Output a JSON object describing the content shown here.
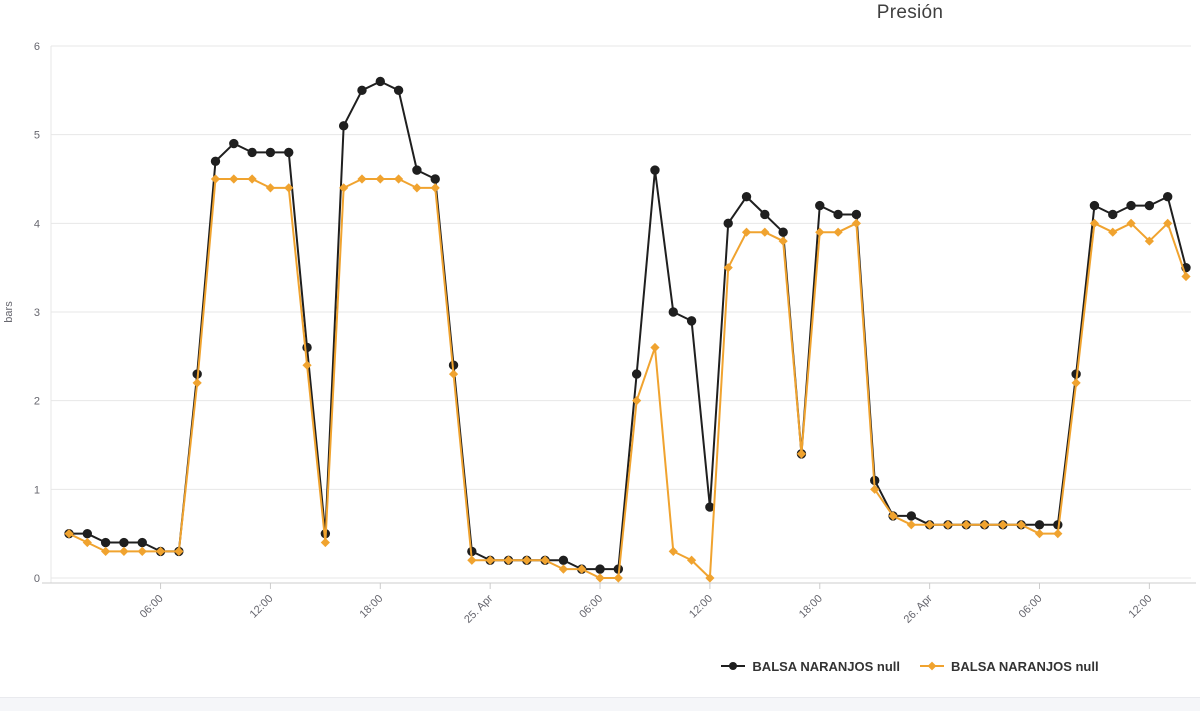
{
  "page": {
    "background_color": "#ffffff",
    "footer_bar_color": "#f5f6f9"
  },
  "chart_data": {
    "type": "line",
    "title": "Presión",
    "xlabel": "",
    "ylabel": "bars",
    "ylim": [
      0,
      6
    ],
    "yticks": [
      0,
      1,
      2,
      3,
      4,
      5,
      6
    ],
    "grid": true,
    "grid_color": "#e7e7e7",
    "axis_color": "#cccccc",
    "tick_text_color": "#66666e",
    "legend_position": "bottom",
    "x_start": "24. Apr 01:00",
    "x_interval_hours": 1,
    "n_points": 62,
    "x_tick_labels": [
      "06:00",
      "12:00",
      "18:00",
      "25. Apr",
      "06:00",
      "12:00",
      "18:00",
      "26. Apr",
      "06:00",
      "12:00"
    ],
    "x_tick_indices": [
      5,
      11,
      17,
      23,
      29,
      35,
      41,
      47,
      53,
      59
    ],
    "series": [
      {
        "name": "BALSA NARANJOS null",
        "color": "#1f1f1f",
        "marker": "circle",
        "values": [
          0.5,
          0.5,
          0.4,
          0.4,
          0.4,
          0.3,
          0.3,
          2.3,
          4.7,
          4.9,
          4.8,
          4.8,
          4.8,
          2.6,
          0.5,
          5.1,
          5.5,
          5.6,
          5.5,
          4.6,
          4.5,
          2.4,
          0.3,
          0.2,
          0.2,
          0.2,
          0.2,
          0.2,
          0.1,
          0.1,
          0.1,
          2.3,
          4.6,
          3.0,
          2.9,
          0.8,
          4.0,
          4.3,
          4.1,
          3.9,
          1.4,
          4.2,
          4.1,
          4.1,
          1.1,
          0.7,
          0.7,
          0.6,
          0.6,
          0.6,
          0.6,
          0.6,
          0.6,
          0.6,
          0.6,
          2.3,
          4.2,
          4.1,
          4.2,
          4.2,
          4.3,
          3.5
        ]
      },
      {
        "name": "BALSA NARANJOS null",
        "color": "#f0a32f",
        "marker": "diamond",
        "values": [
          0.5,
          0.4,
          0.3,
          0.3,
          0.3,
          0.3,
          0.3,
          2.2,
          4.5,
          4.5,
          4.5,
          4.4,
          4.4,
          2.4,
          0.4,
          4.4,
          4.5,
          4.5,
          4.5,
          4.4,
          4.4,
          2.3,
          0.2,
          0.2,
          0.2,
          0.2,
          0.2,
          0.1,
          0.1,
          0.0,
          0.0,
          2.0,
          2.6,
          0.3,
          0.2,
          0.0,
          3.5,
          3.9,
          3.9,
          3.8,
          1.4,
          3.9,
          3.9,
          4.0,
          1.0,
          0.7,
          0.6,
          0.6,
          0.6,
          0.6,
          0.6,
          0.6,
          0.6,
          0.5,
          0.5,
          2.2,
          4.0,
          3.9,
          4.0,
          3.8,
          4.0,
          3.4
        ]
      }
    ]
  }
}
